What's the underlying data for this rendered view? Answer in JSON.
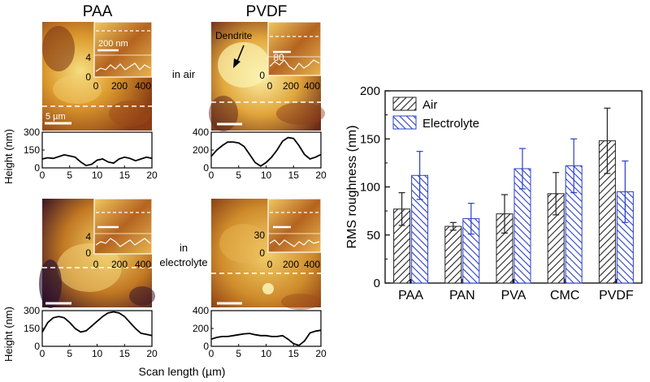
{
  "figure": {
    "col_titles": [
      "PAA",
      "PVDF"
    ],
    "row_labels": [
      "in air",
      "in",
      "electrolyte"
    ],
    "dendrite_label": "Dendrite",
    "scale_labels": [
      "200 nm",
      "5 µm"
    ],
    "line_profile_ylabel": "Height (nm)",
    "line_profile_xlabel": "Scan length (µm)",
    "colors": {
      "afm_dark": "#2a1230",
      "afm_mid": "#b8641a",
      "afm_light": "#f5dc7a",
      "air_hatch": "#222222",
      "electrolyte_hatch": "#2a3fc8"
    }
  },
  "profiles": [
    {
      "panel": "PAA-air",
      "x_ticks": [
        "0",
        "5",
        "10",
        "15",
        "20"
      ],
      "y_ticks": [
        "0",
        "150",
        "300"
      ],
      "ymax": 300,
      "x": [
        0,
        1,
        2,
        3,
        4,
        5,
        6,
        7,
        8,
        9,
        10,
        11,
        12,
        13,
        14,
        15,
        16,
        17,
        18,
        19,
        20
      ],
      "y": [
        75,
        85,
        80,
        95,
        110,
        100,
        90,
        50,
        20,
        30,
        65,
        75,
        50,
        40,
        75,
        90,
        80,
        60,
        75,
        90,
        80
      ]
    },
    {
      "panel": "PVDF-air",
      "x_ticks": [
        "0",
        "5",
        "10",
        "15",
        "20"
      ],
      "y_ticks": [
        "0",
        "200",
        "400"
      ],
      "ymax": 400,
      "x": [
        0,
        1,
        2,
        3,
        4,
        5,
        6,
        7,
        8,
        9,
        10,
        11,
        12,
        13,
        14,
        15,
        16,
        17,
        18,
        19,
        20
      ],
      "y": [
        130,
        200,
        250,
        290,
        290,
        280,
        240,
        150,
        60,
        20,
        60,
        120,
        200,
        300,
        340,
        330,
        250,
        150,
        100,
        120,
        150
      ]
    },
    {
      "panel": "PAA-electrolyte",
      "x_ticks": [
        "0",
        "5",
        "10",
        "15",
        "20"
      ],
      "y_ticks": [
        "0",
        "150",
        "300"
      ],
      "ymax": 300,
      "x": [
        0,
        1,
        2,
        3,
        4,
        5,
        6,
        7,
        8,
        9,
        10,
        11,
        12,
        13,
        14,
        15,
        16,
        17,
        18,
        19,
        20
      ],
      "y": [
        120,
        200,
        240,
        250,
        240,
        200,
        150,
        120,
        130,
        170,
        210,
        250,
        280,
        290,
        280,
        250,
        200,
        150,
        110,
        100,
        90
      ]
    },
    {
      "panel": "PVDF-electrolyte",
      "x_ticks": [
        "0",
        "5",
        "10",
        "15",
        "20"
      ],
      "y_ticks": [
        "0",
        "200",
        "400"
      ],
      "ymax": 400,
      "x": [
        0,
        1,
        2,
        3,
        4,
        5,
        6,
        7,
        8,
        9,
        10,
        11,
        12,
        13,
        14,
        15,
        16,
        17,
        18,
        19,
        20
      ],
      "y": [
        80,
        100,
        110,
        110,
        120,
        130,
        140,
        145,
        130,
        120,
        120,
        110,
        110,
        120,
        80,
        30,
        10,
        60,
        150,
        170,
        180
      ]
    }
  ],
  "insets": [
    {
      "panel": "PAA-air",
      "y_tick": "4",
      "x_ticks": [
        "0",
        "200",
        "400"
      ],
      "y0": "0"
    },
    {
      "panel": "PVDF-air",
      "y_tick": "80",
      "x_ticks": [
        "0",
        "200",
        "400"
      ],
      "y0": "0"
    },
    {
      "panel": "PAA-electrolyte",
      "y_tick": "4",
      "x_ticks": [
        "0",
        "200",
        "400"
      ],
      "y0": "0"
    },
    {
      "panel": "PVDF-electrolyte",
      "y_tick": "30",
      "x_ticks": [
        "0",
        "200",
        "400"
      ],
      "y0": "0"
    }
  ],
  "chart_data": {
    "type": "bar",
    "categories": [
      "PAA",
      "PAN",
      "PVA",
      "CMC",
      "PVDF"
    ],
    "series": [
      {
        "name": "Air",
        "values": [
          77,
          59,
          72,
          93,
          148
        ],
        "errors": [
          17,
          4,
          20,
          22,
          34
        ]
      },
      {
        "name": "Electrolyte",
        "values": [
          112,
          67,
          119,
          122,
          95
        ],
        "errors": [
          25,
          16,
          21,
          28,
          32
        ]
      }
    ],
    "ylabel": "RMS roughness (nm)",
    "ylim": [
      0,
      200
    ],
    "yticks": [
      0,
      50,
      100,
      150,
      200
    ],
    "legend": "top-left",
    "grid": false
  }
}
